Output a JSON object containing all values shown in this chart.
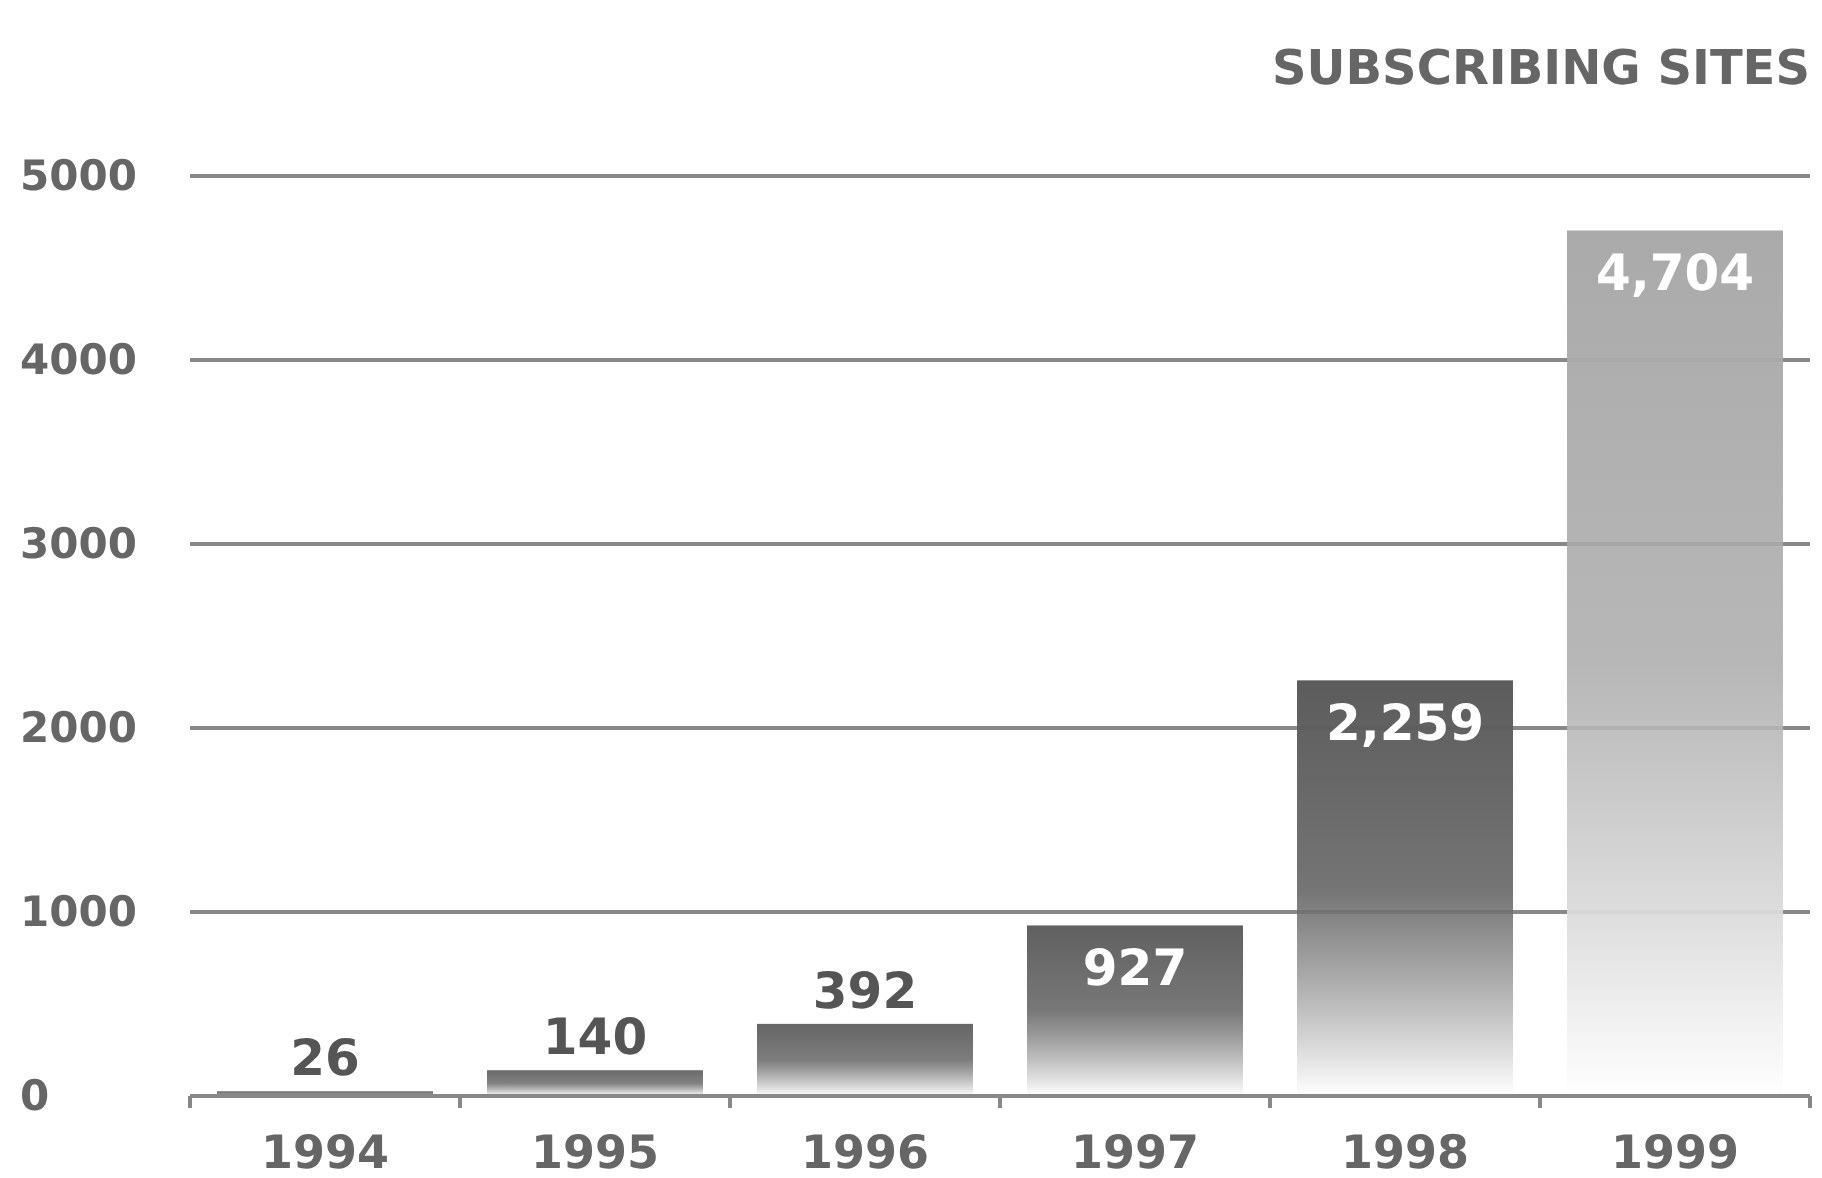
{
  "chart_data": {
    "type": "bar",
    "title": "SUBSCRIBING SITES",
    "categories": [
      "1994",
      "1995",
      "1996",
      "1997",
      "1998",
      "1999"
    ],
    "values": [
      26,
      140,
      392,
      927,
      2259,
      4704
    ],
    "value_labels": [
      "26",
      "140",
      "392",
      "927",
      "2,259",
      "4,704"
    ],
    "colors": [
      "#707070",
      "#6a6a6a",
      "#666666",
      "#606060",
      "#5c5c5c",
      "#aaaaaa"
    ],
    "ylim": [
      0,
      5000
    ],
    "yticks": [
      0,
      1000,
      2000,
      3000,
      4000,
      5000
    ],
    "grid": "y"
  }
}
